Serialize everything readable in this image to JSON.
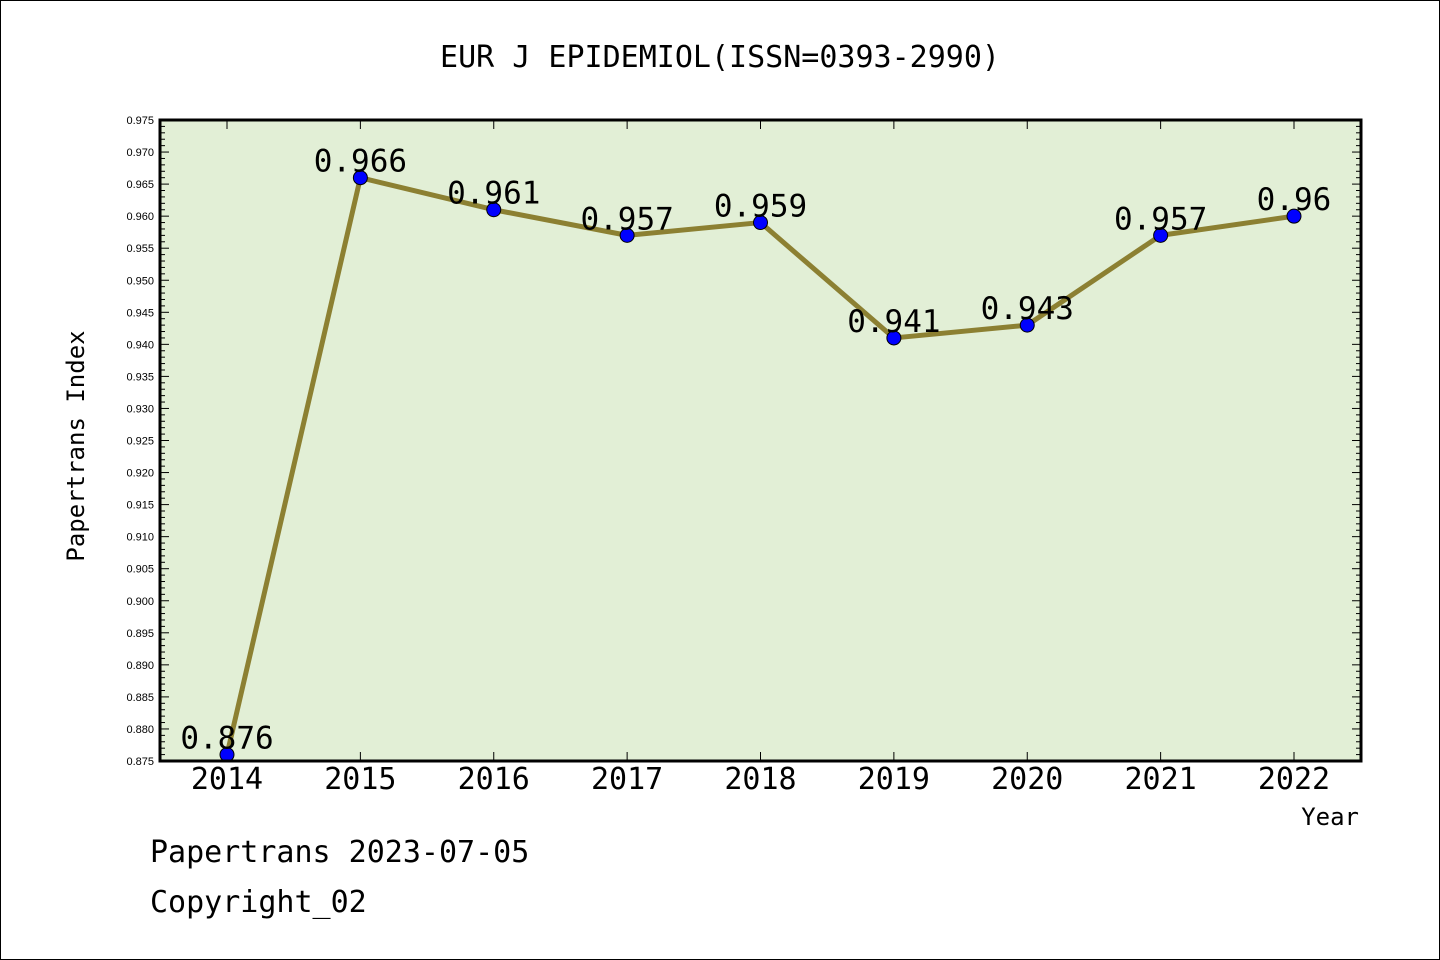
{
  "chart_data": {
    "type": "line",
    "title": "EUR J EPIDEMIOL(ISSN=0393-2990)",
    "xlabel": "Year",
    "ylabel": "Papertrans Index",
    "categories": [
      "2014",
      "2015",
      "2016",
      "2017",
      "2018",
      "2019",
      "2020",
      "2021",
      "2022"
    ],
    "series": [
      {
        "values": [
          0.876,
          0.966,
          0.961,
          0.957,
          0.959,
          0.941,
          0.943,
          0.957,
          0.96
        ]
      }
    ],
    "data_labels": [
      "0.876",
      "0.966",
      "0.961",
      "0.957",
      "0.959",
      "0.941",
      "0.943",
      "0.957",
      "0.96"
    ],
    "ylim": [
      0.875,
      0.975
    ],
    "ytick_step": 0.005,
    "grid": false,
    "colors": {
      "plot_background": "#e2efd6",
      "line": "#8c8032",
      "marker": "#0000ff"
    }
  },
  "footer": {
    "line1": "Papertrans 2023-07-05",
    "line2": "Copyright_02"
  }
}
